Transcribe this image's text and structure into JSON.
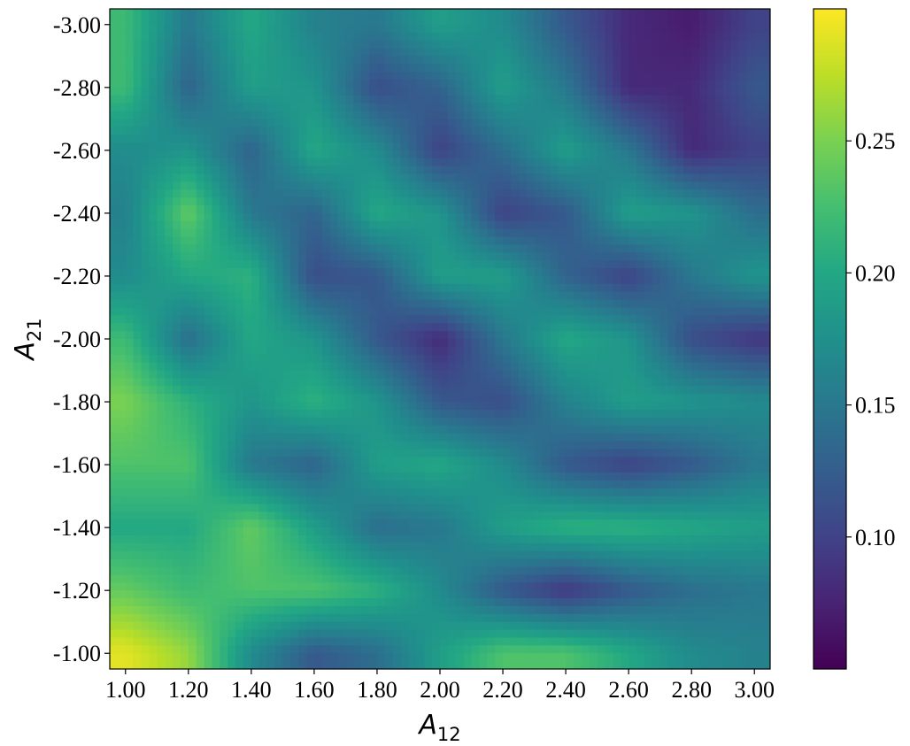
{
  "chart_data": {
    "type": "heatmap",
    "colormap": "viridis",
    "x_axis": {
      "label": "A",
      "label_subscript": "12",
      "range": [
        0.95,
        3.05
      ],
      "ticks": [
        1.0,
        1.2,
        1.4,
        1.6,
        1.8,
        2.0,
        2.2,
        2.4,
        2.6,
        2.8,
        3.0
      ],
      "tick_labels": [
        "1.00",
        "1.20",
        "1.40",
        "1.60",
        "1.80",
        "2.00",
        "2.20",
        "2.40",
        "2.60",
        "2.80",
        "3.00"
      ]
    },
    "y_axis": {
      "label": "A",
      "label_subscript": "21",
      "range": [
        -0.95,
        -3.05
      ],
      "inverted": true,
      "ticks": [
        -3.0,
        -2.8,
        -2.6,
        -2.4,
        -2.2,
        -2.0,
        -1.8,
        -1.6,
        -1.4,
        -1.2,
        -1.0
      ],
      "tick_labels": [
        "-3.00",
        "-2.80",
        "-2.60",
        "-2.40",
        "-2.20",
        "-2.00",
        "-1.80",
        "-1.60",
        "-1.40",
        "-1.20",
        "-1.00"
      ]
    },
    "colorbar": {
      "range": [
        0.05,
        0.3
      ],
      "ticks": [
        0.1,
        0.15,
        0.2,
        0.25
      ],
      "tick_labels": [
        "0.10",
        "0.15",
        "0.20",
        "0.25"
      ]
    },
    "grid_x": [
      1.0,
      1.2,
      1.4,
      1.6,
      1.8,
      2.0,
      2.2,
      2.4,
      2.6,
      2.8,
      3.0
    ],
    "grid_y": [
      -1.0,
      -1.2,
      -1.4,
      -1.6,
      -1.8,
      -2.0,
      -2.2,
      -2.4,
      -2.6,
      -2.8,
      -3.0
    ],
    "values": [
      [
        0.29,
        0.26,
        0.17,
        0.12,
        0.14,
        0.19,
        0.23,
        0.23,
        0.2,
        0.17,
        0.16
      ],
      [
        0.24,
        0.22,
        0.23,
        0.23,
        0.21,
        0.17,
        0.12,
        0.09,
        0.12,
        0.14,
        0.15
      ],
      [
        0.2,
        0.2,
        0.24,
        0.19,
        0.14,
        0.15,
        0.19,
        0.21,
        0.21,
        0.2,
        0.19
      ],
      [
        0.23,
        0.23,
        0.15,
        0.13,
        0.19,
        0.2,
        0.17,
        0.12,
        0.1,
        0.12,
        0.15
      ],
      [
        0.25,
        0.21,
        0.18,
        0.21,
        0.18,
        0.12,
        0.11,
        0.16,
        0.19,
        0.18,
        0.17
      ],
      [
        0.22,
        0.14,
        0.2,
        0.18,
        0.12,
        0.08,
        0.15,
        0.2,
        0.18,
        0.11,
        0.09
      ],
      [
        0.17,
        0.2,
        0.21,
        0.11,
        0.12,
        0.19,
        0.19,
        0.13,
        0.1,
        0.15,
        0.18
      ],
      [
        0.16,
        0.24,
        0.15,
        0.13,
        0.2,
        0.18,
        0.1,
        0.12,
        0.19,
        0.18,
        0.14
      ],
      [
        0.17,
        0.18,
        0.13,
        0.2,
        0.17,
        0.1,
        0.14,
        0.19,
        0.15,
        0.08,
        0.1
      ],
      [
        0.22,
        0.13,
        0.19,
        0.18,
        0.11,
        0.13,
        0.19,
        0.15,
        0.08,
        0.08,
        0.12
      ],
      [
        0.22,
        0.15,
        0.2,
        0.16,
        0.15,
        0.19,
        0.17,
        0.12,
        0.08,
        0.07,
        0.1
      ]
    ]
  }
}
